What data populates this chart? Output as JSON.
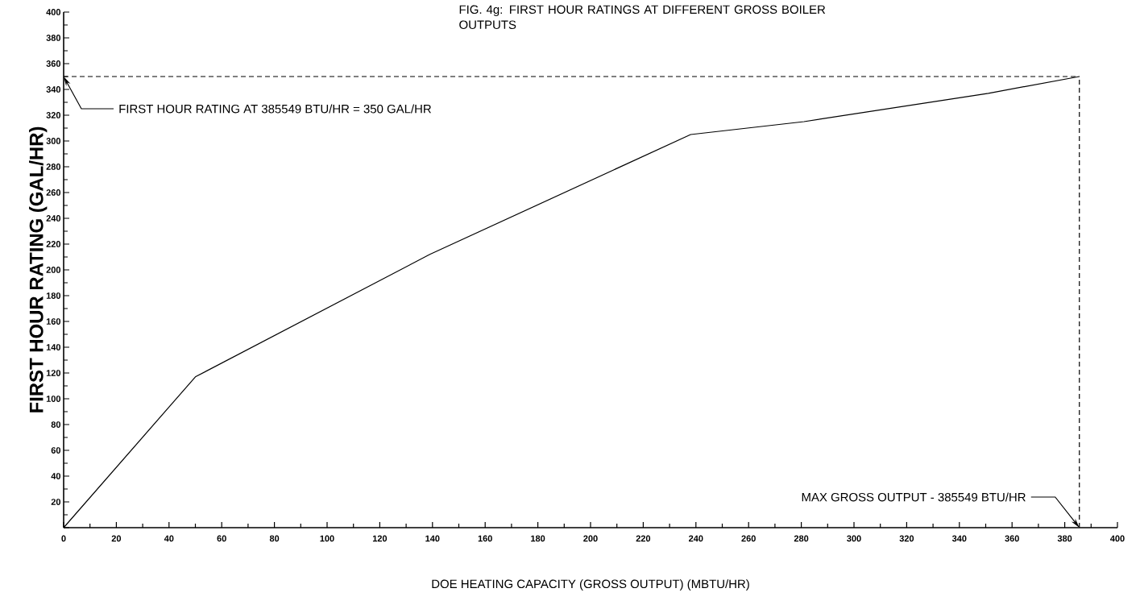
{
  "chart_data": {
    "type": "line",
    "title": "FIG. 4g: FIRST HOUR RATINGS AT DIFFERENT GROSS BOILER OUTPUTS",
    "xlabel": "DOE HEATING CAPACITY (GROSS OUTPUT)  (MBTU/HR)",
    "ylabel": "FIRST HOUR RATING (GAL/HR)",
    "x": [
      0,
      50,
      139,
      238,
      281,
      351,
      385.549
    ],
    "series": [
      {
        "color": "#000000",
        "values": [
          0,
          117,
          212,
          305,
          315,
          337,
          350
        ]
      }
    ],
    "xlim": [
      0,
      400
    ],
    "ylim": [
      0,
      400
    ],
    "xticks": [
      0,
      20,
      40,
      60,
      80,
      100,
      120,
      140,
      160,
      180,
      200,
      220,
      240,
      260,
      280,
      300,
      320,
      340,
      360,
      380,
      400
    ],
    "yticks": [
      {
        "value": 0,
        "label": null
      },
      20,
      40,
      60,
      80,
      100,
      120,
      140,
      160,
      180,
      200,
      220,
      240,
      260,
      280,
      300,
      320,
      340,
      360,
      380,
      400
    ],
    "ref_lines": [
      {
        "axis": "y",
        "value": 350,
        "color": "#000000",
        "line_style": "dashed"
      },
      {
        "axis": "x",
        "value": 385.549,
        "color": "#000000",
        "line_style": "dashed"
      }
    ],
    "annotations": [
      {
        "text": "FIRST HOUR RATING AT 385549 BTU/HR = 350 GAL/HR",
        "x": 0,
        "y": 350
      },
      {
        "text": "MAX GROSS OUTPUT - 385549 BTU/HR",
        "x": 385.549,
        "y": 0
      }
    ],
    "grid": false,
    "marker": "none",
    "line_style": "solid"
  }
}
